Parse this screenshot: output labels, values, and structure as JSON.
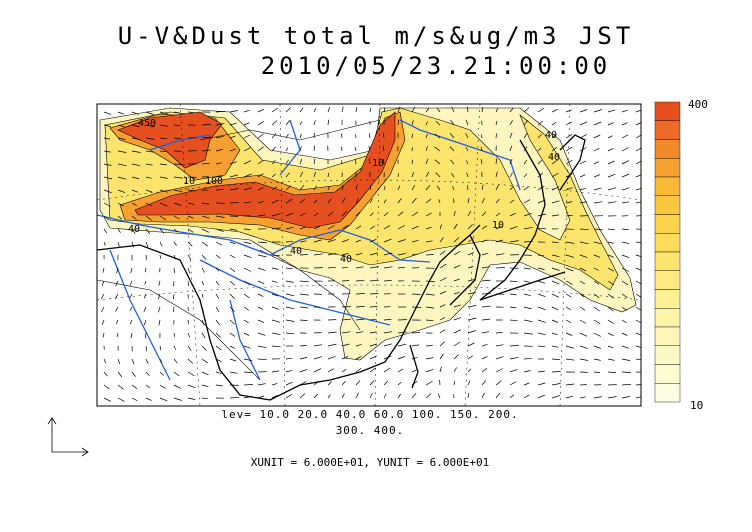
{
  "title_line1": "U-V&Dust total m/s&ug/m3 JST",
  "title_line2": "2010/05/23.21:00:00",
  "levels_line1": "lev= 10.0 20.0 40.0 60.0 100. 150. 200.",
  "levels_line2": "300. 400.",
  "units_text": "XUNIT = 6.000E+01, YUNIT = 6.000E+01",
  "colorbar": {
    "max_label": "400",
    "min_label": "10",
    "colors": [
      "#e65020",
      "#ee6a24",
      "#f28a2a",
      "#f5a030",
      "#f8b838",
      "#fac640",
      "#fbd24c",
      "#fcdc5a",
      "#fde46c",
      "#feea80",
      "#fef094",
      "#fef4a8",
      "#fef6b8",
      "#fef8c6",
      "#fefad2",
      "#fefce0"
    ]
  },
  "contour_labels": [
    "450",
    "10",
    "40",
    "40",
    "40",
    "40",
    "100",
    "10",
    "10",
    "40"
  ],
  "colors": {
    "rivers": "#2060e0",
    "coast": "#000000",
    "dust_high": "#e65020",
    "dust_low": "#fef6b8"
  }
}
